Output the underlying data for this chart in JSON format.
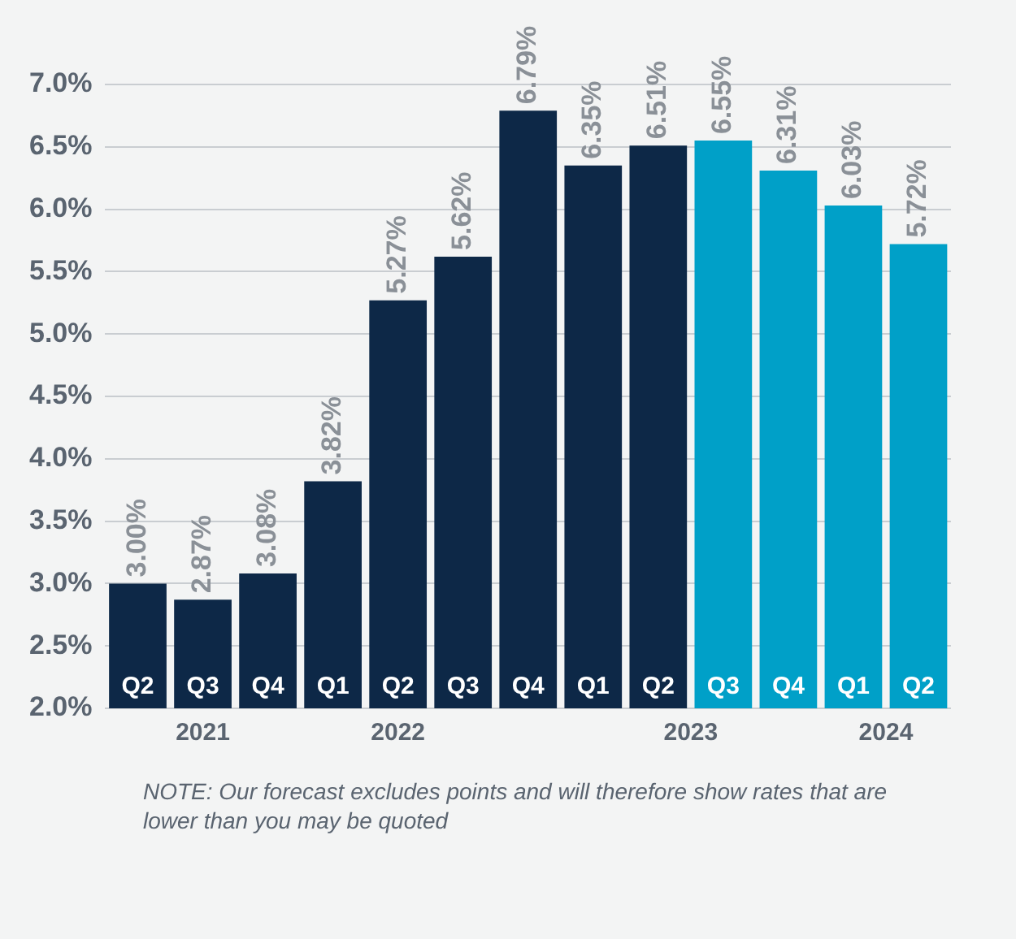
{
  "chart_data": {
    "type": "bar",
    "categories": [
      "Q2",
      "Q3",
      "Q4",
      "Q1",
      "Q2",
      "Q3",
      "Q4",
      "Q1",
      "Q2",
      "Q3",
      "Q4",
      "Q1",
      "Q2"
    ],
    "values": [
      3.0,
      2.87,
      3.08,
      3.82,
      5.27,
      5.62,
      6.79,
      6.35,
      6.51,
      6.55,
      6.31,
      6.03,
      5.72
    ],
    "value_labels": [
      "3.00%",
      "2.87%",
      "3.08%",
      "3.82%",
      "5.27%",
      "5.62%",
      "6.79%",
      "6.35%",
      "6.51%",
      "6.55%",
      "6.31%",
      "6.03%",
      "5.72%"
    ],
    "colors": [
      "#0d2847",
      "#0d2847",
      "#0d2847",
      "#0d2847",
      "#0d2847",
      "#0d2847",
      "#0d2847",
      "#0d2847",
      "#0d2847",
      "#00a0c8",
      "#00a0c8",
      "#00a0c8",
      "#00a0c8"
    ],
    "ylim": [
      2,
      7
    ],
    "yticks": [
      {
        "value": 2,
        "label": "2.0%"
      },
      {
        "value": 2.5,
        "label": "2.5%"
      },
      {
        "value": 3,
        "label": "3.0%"
      },
      {
        "value": 3.5,
        "label": "3.5%"
      },
      {
        "value": 4,
        "label": "4.0%"
      },
      {
        "value": 4.5,
        "label": "4.5%"
      },
      {
        "value": 5,
        "label": "5.0%"
      },
      {
        "value": 5.5,
        "label": "5.5%"
      },
      {
        "value": 6,
        "label": "6.0%"
      },
      {
        "value": 6.5,
        "label": "6.5%"
      },
      {
        "value": 7,
        "label": "7.0%"
      }
    ],
    "grid": "y",
    "annotations": [
      "2021",
      "2022",
      "2023",
      "2024",
      "NOTE: Our forecast excludes points and will therefore show rates that are lower than you may be quoted"
    ]
  }
}
